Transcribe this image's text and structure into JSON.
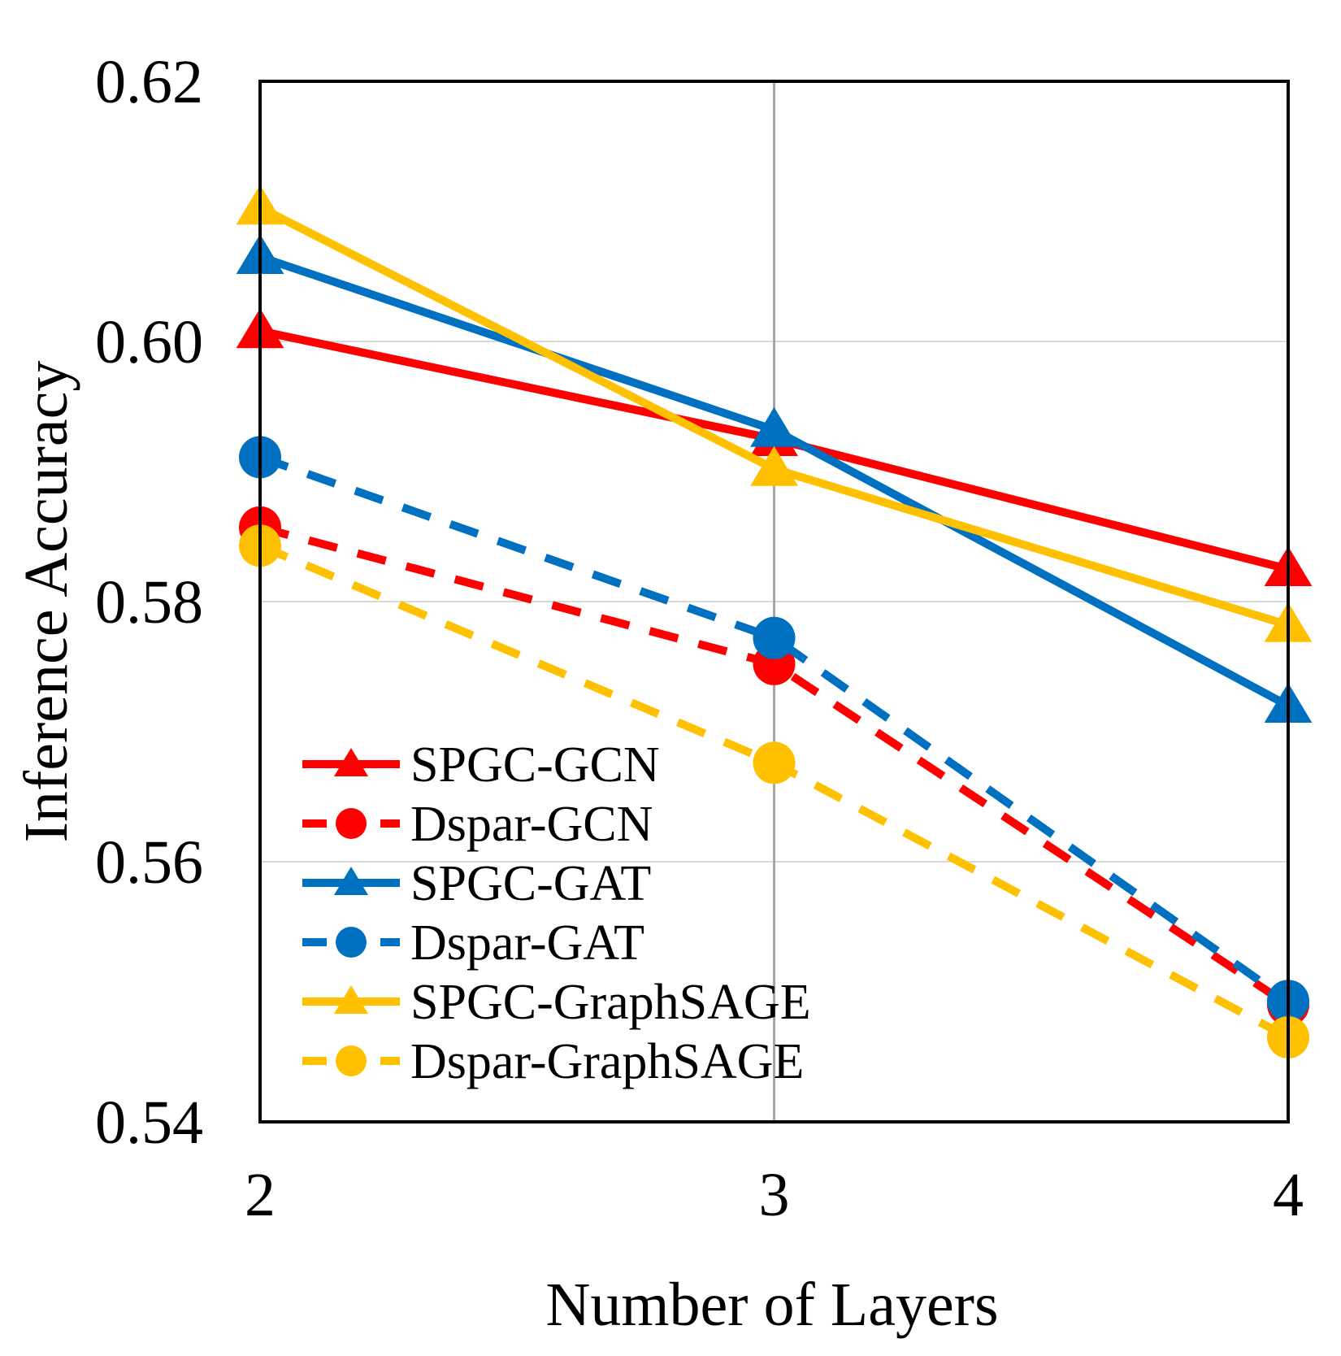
{
  "chart_data": {
    "type": "line",
    "title": "",
    "xlabel": "Number of Layers",
    "ylabel": "Inference Accuracy",
    "x": [
      2,
      3,
      4
    ],
    "x_tick_labels": [
      "2",
      "3",
      "4"
    ],
    "ylim": [
      0.54,
      0.62
    ],
    "y_ticks": [
      0.54,
      0.56,
      0.58,
      0.6,
      0.62
    ],
    "y_tick_labels": [
      "0.54",
      "0.56",
      "0.58",
      "0.60",
      "0.62"
    ],
    "grid": true,
    "legend_position": "bottom-left",
    "series": [
      {
        "name": "SPGC-GCN",
        "values": [
          0.6008,
          0.5925,
          0.5825
        ],
        "color": "#ff0000",
        "style": "solid",
        "marker": "triangle"
      },
      {
        "name": "Dspar-GCN",
        "values": [
          0.5857,
          0.5752,
          0.549
        ],
        "color": "#ff0000",
        "style": "dashed",
        "marker": "circle"
      },
      {
        "name": "SPGC-GAT",
        "values": [
          0.6065,
          0.5932,
          0.572
        ],
        "color": "#0070c0",
        "style": "solid",
        "marker": "triangle"
      },
      {
        "name": "Dspar-GAT",
        "values": [
          0.5911,
          0.5772,
          0.5493
        ],
        "color": "#0070c0",
        "style": "dashed",
        "marker": "circle"
      },
      {
        "name": "SPGC-GraphSAGE",
        "values": [
          0.6103,
          0.5902,
          0.5782
        ],
        "color": "#ffc000",
        "style": "solid",
        "marker": "triangle"
      },
      {
        "name": "Dspar-GraphSAGE",
        "values": [
          0.5843,
          0.5676,
          0.5465
        ],
        "color": "#ffc000",
        "style": "dashed",
        "marker": "circle"
      }
    ]
  }
}
